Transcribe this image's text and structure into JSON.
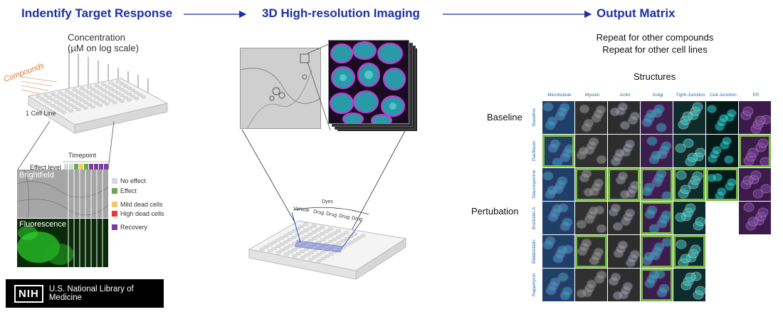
{
  "headings": {
    "target": "Indentify Target Response",
    "imaging": "3D High-resolution Imaging",
    "output": "Output Matrix"
  },
  "plate": {
    "concentration_line1": "Concentration",
    "concentration_line2": "(µM on log scale)",
    "compounds_label": "Compounds",
    "cell_line_label": "1 Cell Line"
  },
  "timeline": {
    "timepoint_label": "Timepoint",
    "effect_level_label": "Effect level",
    "brightfield_label": "Brightfield",
    "fluorescence_label": "Fluorescence",
    "legend": [
      {
        "label": "No effect",
        "color": "#d9d9d9"
      },
      {
        "label": "Effect",
        "color": "#6aa84f"
      },
      {
        "label": "Mild dead cells",
        "color": "#f6c86b"
      },
      {
        "label": "High dead cells",
        "color": "#e53935"
      },
      {
        "label": "Recovery",
        "color": "#7b3fa0"
      }
    ]
  },
  "dyes_plate": {
    "dyes_label": "Dyes",
    "columns": [
      "Vehicle",
      "Drug",
      "Drug",
      "Drug",
      "Drug"
    ]
  },
  "output": {
    "repeat_line1": "Repeat for other compounds",
    "repeat_line2": "Repeat for other cell lines",
    "structures_label": "Structures",
    "baseline_label": "Baseline",
    "perturbation_label": "Pertubation",
    "columns": [
      "Microtubule",
      "Myosin",
      "Actin",
      "Golgi",
      "Tight-Junction",
      "Cell-Junction",
      "ER"
    ],
    "rows": [
      "Baseline",
      "Paclitaxel",
      "Staurosporine",
      "Brefeldin A",
      "Blebbistatin",
      "Rapamycin"
    ]
  },
  "logo": {
    "mark": "NIH",
    "org": "U.S. National Library of Medicine"
  },
  "colors": {
    "heading": "#1f2fa5",
    "highlight": "#77b843",
    "cyan": "#37c6d0",
    "magenta": "#b23ab8"
  }
}
